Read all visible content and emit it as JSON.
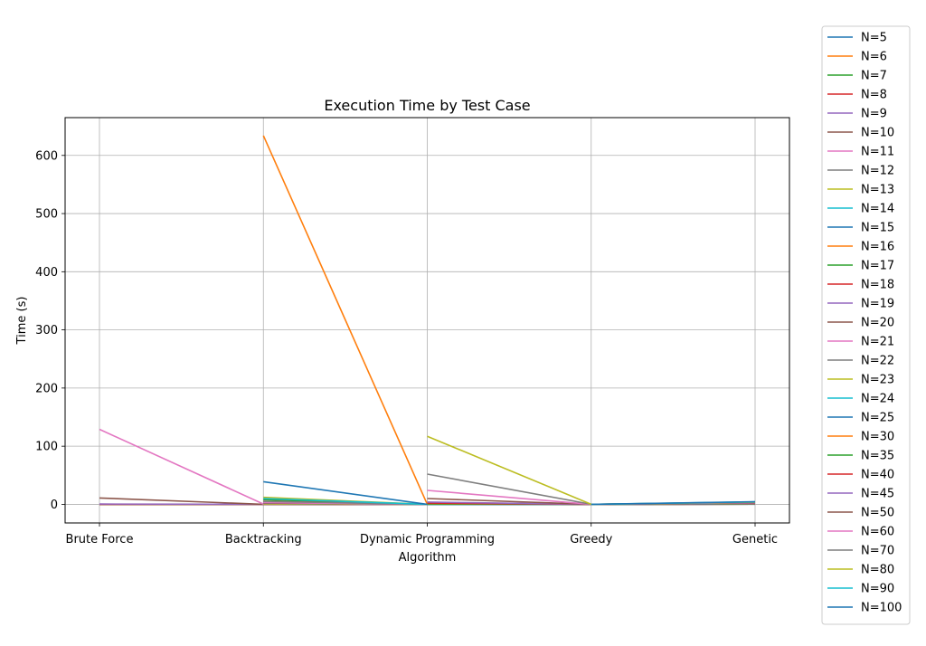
{
  "chart_data": {
    "type": "line",
    "title": "Execution Time by Test Case",
    "xlabel": "Algorithm",
    "ylabel": "Time (s)",
    "categories": [
      "Brute Force",
      "Backtracking",
      "Dynamic Programming",
      "Greedy",
      "Genetic"
    ],
    "ylim": [
      -32,
      665
    ],
    "yticks": [
      0,
      100,
      200,
      300,
      400,
      500,
      600
    ],
    "grid": true,
    "legend_position": "outside-right",
    "series": [
      {
        "name": "N=5",
        "color": "#1f77b4",
        "values": [
          0.0,
          0.0,
          0.0,
          0.0,
          0.2
        ]
      },
      {
        "name": "N=6",
        "color": "#ff7f0e",
        "values": [
          0.0,
          0.0,
          0.0,
          0.0,
          0.3
        ]
      },
      {
        "name": "N=7",
        "color": "#2ca02c",
        "values": [
          0.0,
          0.0,
          0.0,
          0.0,
          0.3
        ]
      },
      {
        "name": "N=8",
        "color": "#d62728",
        "values": [
          0.05,
          0.0,
          0.0,
          0.0,
          0.4
        ]
      },
      {
        "name": "N=9",
        "color": "#9467bd",
        "values": [
          0.5,
          0.0,
          0.0,
          0.0,
          0.4
        ]
      },
      {
        "name": "N=10",
        "color": "#8c564b",
        "values": [
          11,
          0.0,
          0.0,
          0.0,
          0.5
        ]
      },
      {
        "name": "N=11",
        "color": "#e377c2",
        "values": [
          129,
          0.5,
          0.0,
          0.0,
          0.5
        ]
      },
      {
        "name": "N=12",
        "color": "#7f7f7f",
        "values": [
          null,
          0.5,
          0.0,
          0.0,
          0.5
        ]
      },
      {
        "name": "N=13",
        "color": "#bcbd22",
        "values": [
          null,
          1.0,
          0.0,
          0.0,
          0.6
        ]
      },
      {
        "name": "N=14",
        "color": "#17becf",
        "values": [
          null,
          2.0,
          0.0,
          0.0,
          0.6
        ]
      },
      {
        "name": "N=15",
        "color": "#1f77b4",
        "values": [
          null,
          3.0,
          0.0,
          0.0,
          0.7
        ]
      },
      {
        "name": "N=16",
        "color": "#ff7f0e",
        "values": [
          null,
          634,
          0.0,
          0.0,
          0.7
        ]
      },
      {
        "name": "N=17",
        "color": "#2ca02c",
        "values": [
          null,
          8.0,
          0.0,
          0.0,
          0.8
        ]
      },
      {
        "name": "N=18",
        "color": "#d62728",
        "values": [
          null,
          5.0,
          0.0,
          0.0,
          0.8
        ]
      },
      {
        "name": "N=19",
        "color": "#9467bd",
        "values": [
          null,
          4.0,
          0.0,
          0.0,
          0.9
        ]
      },
      {
        "name": "N=20",
        "color": "#8c564b",
        "values": [
          null,
          2.0,
          0.0,
          0.0,
          0.9
        ]
      },
      {
        "name": "N=21",
        "color": "#e377c2",
        "values": [
          null,
          3.0,
          0.0,
          0.0,
          1.0
        ]
      },
      {
        "name": "N=22",
        "color": "#7f7f7f",
        "values": [
          null,
          5.0,
          0.0,
          0.0,
          1.0
        ]
      },
      {
        "name": "N=23",
        "color": "#bcbd22",
        "values": [
          null,
          12,
          0.0,
          0.0,
          1.1
        ]
      },
      {
        "name": "N=24",
        "color": "#17becf",
        "values": [
          null,
          10,
          0.0,
          0.0,
          1.1
        ]
      },
      {
        "name": "N=25",
        "color": "#1f77b4",
        "values": [
          null,
          39,
          0.0,
          0.0,
          1.2
        ]
      },
      {
        "name": "N=30",
        "color": "#ff7f0e",
        "values": [
          null,
          null,
          0.5,
          0.0,
          1.5
        ]
      },
      {
        "name": "N=35",
        "color": "#2ca02c",
        "values": [
          null,
          null,
          1.0,
          0.0,
          1.7
        ]
      },
      {
        "name": "N=40",
        "color": "#d62728",
        "values": [
          null,
          null,
          2.0,
          0.0,
          2.0
        ]
      },
      {
        "name": "N=45",
        "color": "#9467bd",
        "values": [
          null,
          null,
          4.0,
          0.0,
          2.3
        ]
      },
      {
        "name": "N=50",
        "color": "#8c564b",
        "values": [
          null,
          null,
          10,
          0.0,
          2.5
        ]
      },
      {
        "name": "N=60",
        "color": "#e377c2",
        "values": [
          null,
          null,
          24,
          0.0,
          3.0
        ]
      },
      {
        "name": "N=70",
        "color": "#7f7f7f",
        "values": [
          null,
          null,
          52,
          0.0,
          3.5
        ]
      },
      {
        "name": "N=80",
        "color": "#bcbd22",
        "values": [
          null,
          null,
          117,
          0.0,
          4.0
        ]
      },
      {
        "name": "N=90",
        "color": "#17becf",
        "values": [
          null,
          null,
          null,
          0.0,
          4.3
        ]
      },
      {
        "name": "N=100",
        "color": "#1f77b4",
        "values": [
          null,
          null,
          null,
          0.0,
          4.5
        ]
      }
    ]
  }
}
